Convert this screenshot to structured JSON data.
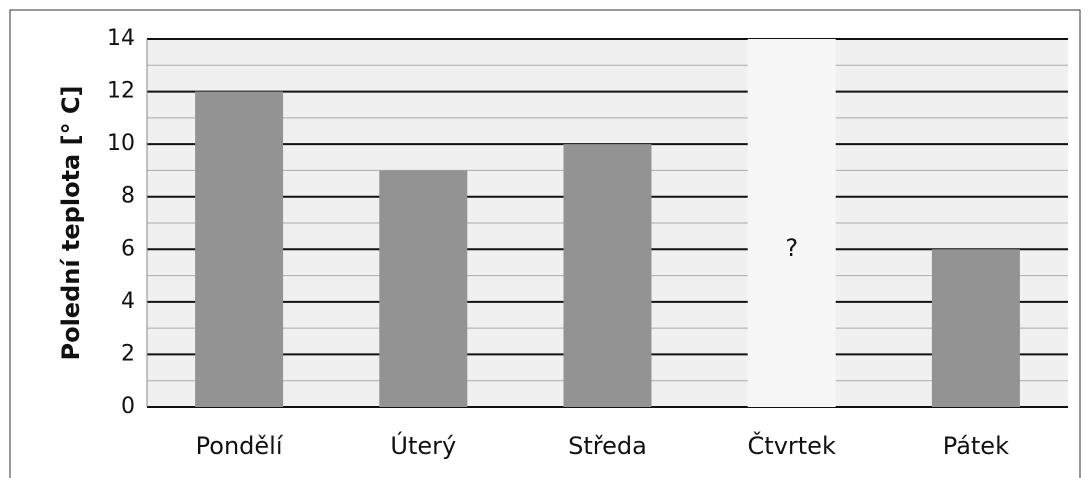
{
  "chart_data": {
    "type": "bar",
    "y_label": "Polední teplota  [° C]",
    "categories": [
      "Pondělí",
      "Úterý",
      "Středa",
      "Čtvrtek",
      "Pátek"
    ],
    "values": [
      12,
      9,
      10,
      null,
      6
    ],
    "annotation": "?",
    "color": "#939393",
    "ylim": [
      0,
      14
    ],
    "yticks": [
      0,
      2,
      4,
      6,
      8,
      10,
      12,
      14
    ],
    "grid": true,
    "minor_grid": true
  }
}
